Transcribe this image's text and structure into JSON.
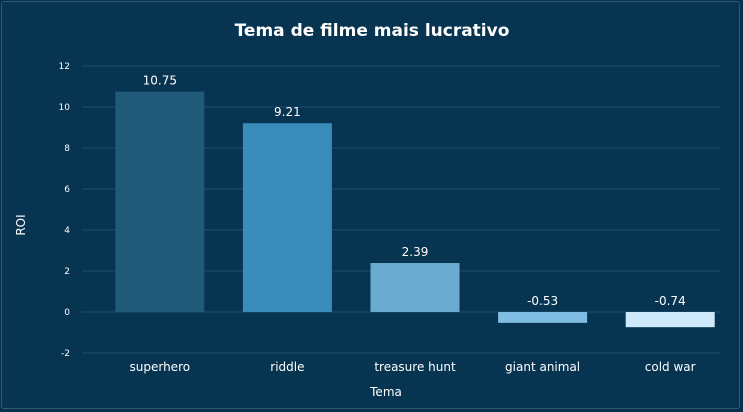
{
  "chart_data": {
    "type": "bar",
    "title": "Tema de filme mais lucrativo",
    "xlabel": "Tema",
    "ylabel": "ROI",
    "categories": [
      "superhero",
      "riddle",
      "treasure hunt",
      "giant animal",
      "cold war"
    ],
    "values": [
      10.75,
      9.21,
      2.39,
      -0.53,
      -0.74
    ],
    "data_labels": [
      "10.75",
      "9.21",
      "2.39",
      "-0.53",
      "-0.74"
    ],
    "colors": [
      "#1f5a79",
      "#3a8dbb",
      "#6aabcf",
      "#7fbde3",
      "#cde9fa"
    ],
    "ylim": [
      -2,
      12
    ],
    "yticks": [
      -2,
      0,
      2,
      4,
      6,
      8,
      10,
      12
    ],
    "grid": true,
    "legend": "none"
  }
}
